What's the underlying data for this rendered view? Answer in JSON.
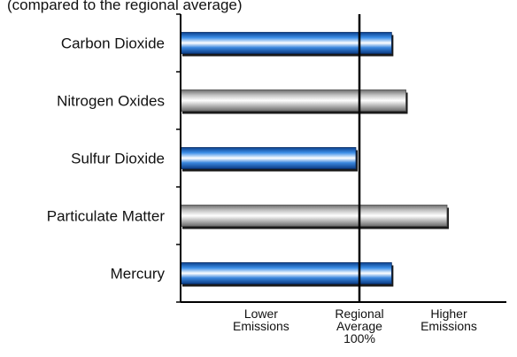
{
  "header_fragment": "(compared to the regional average)",
  "chart_data": {
    "type": "bar",
    "orientation": "horizontal",
    "categories": [
      "Carbon Dioxide",
      "Nitrogen Oxides",
      "Sulfur Dioxide",
      "Particulate Matter",
      "Mercury"
    ],
    "values": [
      118,
      126,
      98,
      149,
      118
    ],
    "unit": "% of regional average",
    "reference": {
      "value": 100,
      "label_lines": [
        "Regional",
        "Average",
        "100%"
      ]
    },
    "x_annotations": [
      {
        "value": 45,
        "lines": [
          "Lower",
          "Emissions"
        ]
      },
      {
        "value": 150,
        "lines": [
          "Higher",
          "Emissions"
        ]
      }
    ],
    "xlim": [
      0,
      165
    ],
    "bar_colors": [
      "#2f7fd6",
      "#b4b4b4",
      "#2f7fd6",
      "#b4b4b4",
      "#2f7fd6"
    ],
    "grid": false,
    "legend": "none"
  }
}
